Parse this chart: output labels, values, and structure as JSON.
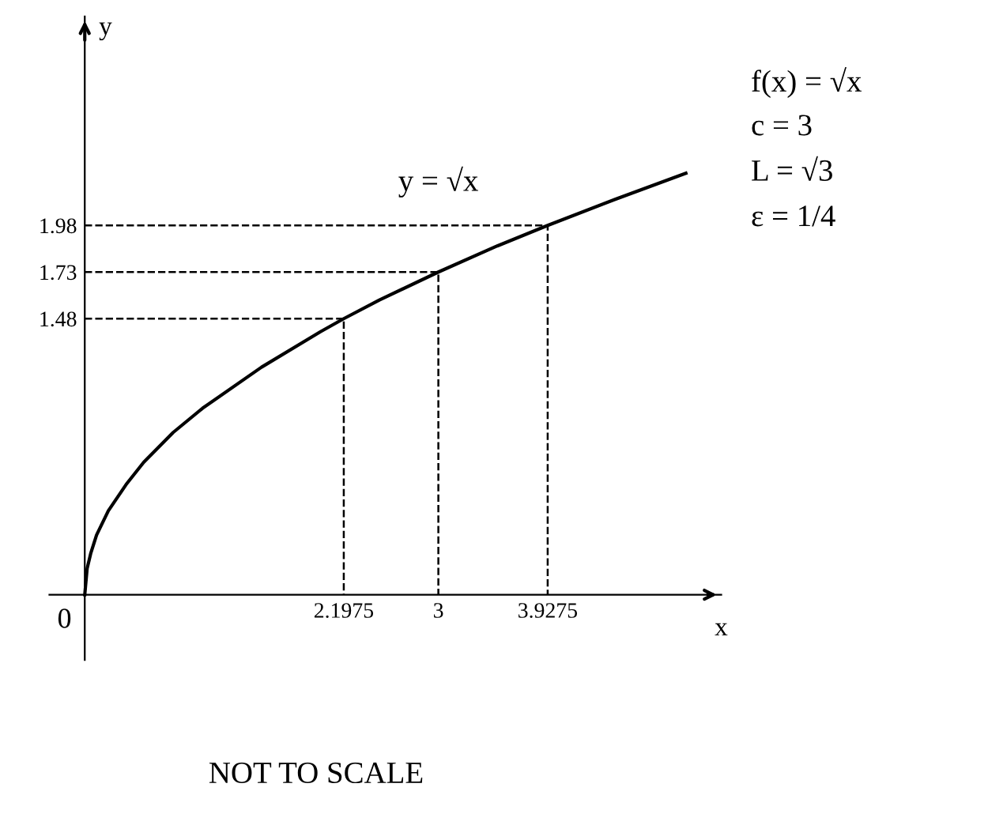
{
  "chart_data": {
    "type": "line",
    "title": null,
    "xlabel": "x",
    "ylabel": "y",
    "xlim": [
      -0.3,
      5.4
    ],
    "ylim": [
      -0.35,
      3.1
    ],
    "xticks": [
      {
        "value": 0,
        "label": "0"
      },
      2.1975,
      3,
      3.9275
    ],
    "yticks": [
      1.48,
      1.73,
      1.98
    ],
    "grid": false,
    "legend": false,
    "marker": "none",
    "series": [
      {
        "name": "y = √x",
        "color": "#000000",
        "line_style": "solid",
        "x": [
          0,
          0.02,
          0.05,
          0.1,
          0.2,
          0.35,
          0.5,
          0.75,
          1,
          1.5,
          2,
          2.1975,
          2.5,
          3,
          3.5,
          3.9275,
          4.5,
          5.1
        ],
        "values": [
          0,
          0.14,
          0.22,
          0.32,
          0.45,
          0.59,
          0.71,
          0.87,
          1,
          1.22,
          1.41,
          1.48,
          1.58,
          1.73,
          1.87,
          1.98,
          2.12,
          2.26
        ]
      },
      {
        "color": "#000000",
        "line_style": "dashed",
        "x": [
          0,
          2.1975,
          2.1975
        ],
        "values": [
          1.48,
          1.48,
          0
        ]
      },
      {
        "color": "#000000",
        "line_style": "dashed",
        "x": [
          0,
          3,
          3
        ],
        "values": [
          1.73,
          1.73,
          0
        ]
      },
      {
        "color": "#000000",
        "line_style": "dashed",
        "x": [
          0,
          3.9275,
          3.9275
        ],
        "values": [
          1.98,
          1.98,
          0
        ]
      }
    ],
    "annotations": [
      "f(x) = √x",
      "c = 3",
      "L = √3",
      "ε = 1/4",
      "NOT TO SCALE"
    ]
  }
}
